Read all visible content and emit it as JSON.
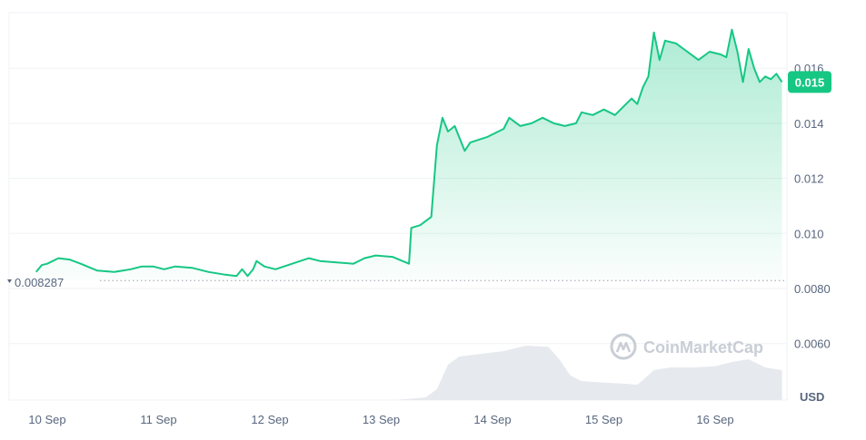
{
  "watermark": {
    "text": "CoinMarketCap"
  },
  "chart_data": {
    "type": "area",
    "currency_label": "USD",
    "current_price_label": "0.015",
    "start_price_label": "0.008287",
    "start_price": 0.008287,
    "ylim": [
      0.0048,
      0.0182
    ],
    "y_ticks": [
      0.006,
      0.008,
      0.01,
      0.012,
      0.014,
      0.016
    ],
    "y_tick_labels": [
      "0.0060",
      "0.0080",
      "0.010",
      "0.012",
      "0.014",
      "0.016"
    ],
    "x_ticks": [
      "10 Sep",
      "11 Sep",
      "12 Sep",
      "13 Sep",
      "14 Sep",
      "15 Sep",
      "16 Sep"
    ],
    "x_range_days": [
      -0.15,
      6.62
    ],
    "grid": true,
    "line_color": "#16c784",
    "price_series": [
      [
        -0.1,
        0.0086
      ],
      [
        -0.05,
        0.00885
      ],
      [
        0.0,
        0.0089
      ],
      [
        0.1,
        0.0091
      ],
      [
        0.2,
        0.00905
      ],
      [
        0.3,
        0.0089
      ],
      [
        0.45,
        0.00865
      ],
      [
        0.6,
        0.0086
      ],
      [
        0.75,
        0.0087
      ],
      [
        0.85,
        0.0088
      ],
      [
        0.95,
        0.0088
      ],
      [
        1.05,
        0.0087
      ],
      [
        1.15,
        0.0088
      ],
      [
        1.3,
        0.00875
      ],
      [
        1.45,
        0.0086
      ],
      [
        1.6,
        0.0085
      ],
      [
        1.7,
        0.00845
      ],
      [
        1.75,
        0.0087
      ],
      [
        1.8,
        0.00845
      ],
      [
        1.85,
        0.0087
      ],
      [
        1.88,
        0.009
      ],
      [
        1.95,
        0.0088
      ],
      [
        2.05,
        0.0087
      ],
      [
        2.2,
        0.0089
      ],
      [
        2.35,
        0.0091
      ],
      [
        2.45,
        0.009
      ],
      [
        2.6,
        0.00895
      ],
      [
        2.75,
        0.0089
      ],
      [
        2.85,
        0.0091
      ],
      [
        2.95,
        0.0092
      ],
      [
        3.1,
        0.00915
      ],
      [
        3.25,
        0.0089
      ],
      [
        3.27,
        0.0102
      ],
      [
        3.35,
        0.0103
      ],
      [
        3.45,
        0.0106
      ],
      [
        3.5,
        0.0132
      ],
      [
        3.55,
        0.0142
      ],
      [
        3.6,
        0.0137
      ],
      [
        3.66,
        0.0139
      ],
      [
        3.7,
        0.0135
      ],
      [
        3.75,
        0.013
      ],
      [
        3.8,
        0.0133
      ],
      [
        3.95,
        0.0135
      ],
      [
        4.1,
        0.0138
      ],
      [
        4.15,
        0.0142
      ],
      [
        4.25,
        0.0139
      ],
      [
        4.35,
        0.014
      ],
      [
        4.45,
        0.0142
      ],
      [
        4.55,
        0.014
      ],
      [
        4.65,
        0.0139
      ],
      [
        4.75,
        0.014
      ],
      [
        4.8,
        0.0144
      ],
      [
        4.9,
        0.0143
      ],
      [
        5.0,
        0.0145
      ],
      [
        5.1,
        0.0143
      ],
      [
        5.15,
        0.0145
      ],
      [
        5.25,
        0.0149
      ],
      [
        5.3,
        0.0147
      ],
      [
        5.35,
        0.0153
      ],
      [
        5.4,
        0.0157
      ],
      [
        5.45,
        0.0173
      ],
      [
        5.5,
        0.0163
      ],
      [
        5.55,
        0.017
      ],
      [
        5.65,
        0.0169
      ],
      [
        5.75,
        0.0166
      ],
      [
        5.85,
        0.0163
      ],
      [
        5.95,
        0.0166
      ],
      [
        6.05,
        0.0165
      ],
      [
        6.1,
        0.0164
      ],
      [
        6.15,
        0.0174
      ],
      [
        6.2,
        0.0166
      ],
      [
        6.25,
        0.0155
      ],
      [
        6.3,
        0.0167
      ],
      [
        6.35,
        0.016
      ],
      [
        6.4,
        0.0155
      ],
      [
        6.45,
        0.0157
      ],
      [
        6.5,
        0.0156
      ],
      [
        6.55,
        0.0158
      ],
      [
        6.6,
        0.0155
      ]
    ],
    "volume_series": [
      [
        -0.1,
        0.0
      ],
      [
        3.1,
        0.0
      ],
      [
        3.25,
        0.02
      ],
      [
        3.4,
        0.05
      ],
      [
        3.5,
        0.2
      ],
      [
        3.6,
        0.65
      ],
      [
        3.7,
        0.8
      ],
      [
        3.9,
        0.85
      ],
      [
        4.1,
        0.9
      ],
      [
        4.3,
        1.0
      ],
      [
        4.5,
        0.98
      ],
      [
        4.6,
        0.75
      ],
      [
        4.7,
        0.45
      ],
      [
        4.8,
        0.35
      ],
      [
        5.0,
        0.32
      ],
      [
        5.2,
        0.3
      ],
      [
        5.3,
        0.28
      ],
      [
        5.45,
        0.55
      ],
      [
        5.6,
        0.6
      ],
      [
        5.8,
        0.6
      ],
      [
        6.0,
        0.62
      ],
      [
        6.15,
        0.7
      ],
      [
        6.3,
        0.75
      ],
      [
        6.45,
        0.6
      ],
      [
        6.6,
        0.55
      ]
    ]
  }
}
